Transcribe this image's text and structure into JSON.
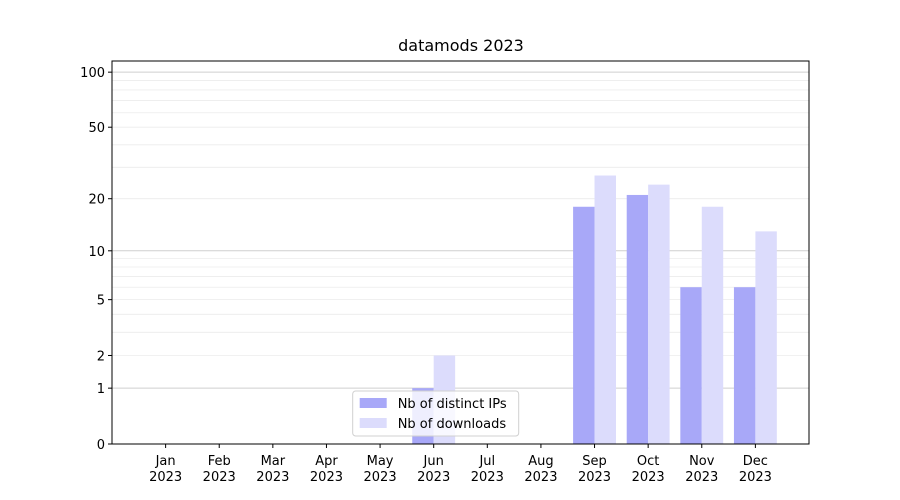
{
  "chart_data": {
    "type": "bar",
    "title": "datamods 2023",
    "categories": [
      "Jan\n2023",
      "Feb\n2023",
      "Mar\n2023",
      "Apr\n2023",
      "May\n2023",
      "Jun\n2023",
      "Jul\n2023",
      "Aug\n2023",
      "Sep\n2023",
      "Oct\n2023",
      "Nov\n2023",
      "Dec\n2023"
    ],
    "series": [
      {
        "name": "Nb of distinct IPs",
        "color": "#a8a8f8",
        "values": [
          0,
          0,
          0,
          0,
          0,
          1,
          0,
          0,
          18,
          21,
          6,
          6
        ]
      },
      {
        "name": "Nb of downloads",
        "color": "#dcdcfc",
        "values": [
          0,
          0,
          0,
          0,
          0,
          2,
          0,
          0,
          27,
          24,
          18,
          13
        ]
      }
    ],
    "yscale": "log1p",
    "ylim": [
      0,
      115
    ],
    "yticks": [
      0,
      1,
      2,
      5,
      10,
      20,
      50,
      100
    ],
    "ymajor_grid": [
      1,
      10,
      100
    ],
    "yminor_grid": [
      2,
      3,
      4,
      5,
      6,
      7,
      8,
      9,
      20,
      30,
      40,
      50,
      60,
      70,
      80,
      90
    ],
    "legend": "lower center"
  }
}
